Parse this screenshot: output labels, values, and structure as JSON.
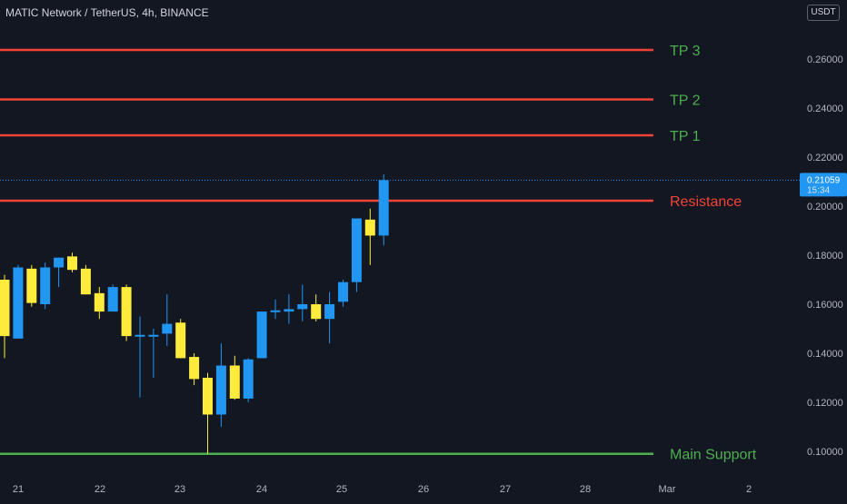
{
  "chart_title": "MATIC Network / TetherUS, 4h, BINANCE",
  "currency_label": "USDT",
  "last_price_label": {
    "price": "0.21059",
    "countdown": "15:34"
  },
  "colors": {
    "background": "#131722",
    "up": "#2196f3",
    "down": "#ffeb3b",
    "resistance": "#f44336",
    "support": "#4caf50",
    "target_text": "#4caf50",
    "resistance_text": "#f44336",
    "axis_text": "#b2b5be",
    "last_price": "#2196f3"
  },
  "chart_data": {
    "type": "candlestick",
    "y_axis": {
      "min": 0.093,
      "max": 0.281,
      "ticks": [
        "0.26000",
        "0.24000",
        "0.22000",
        "0.20000",
        "0.18000",
        "0.16000",
        "0.14000",
        "0.12000",
        "0.10000"
      ]
    },
    "x_axis": {
      "tick_labels": [
        "21",
        "22",
        "23",
        "24",
        "25",
        "26",
        "27",
        "28",
        "Mar",
        "2"
      ]
    },
    "levels": [
      {
        "label": "TP 3",
        "price": 0.2637,
        "kind": "target"
      },
      {
        "label": "TP 2",
        "price": 0.2435,
        "kind": "target"
      },
      {
        "label": "TP 1",
        "price": 0.2289,
        "kind": "target"
      },
      {
        "label": "Resistance",
        "price": 0.2022,
        "kind": "resistance"
      },
      {
        "label": "Main Support",
        "price": 0.099,
        "kind": "support"
      }
    ],
    "candles": [
      {
        "o": 0.17,
        "h": 0.172,
        "l": 0.138,
        "c": 0.147
      },
      {
        "o": 0.146,
        "h": 0.176,
        "l": 0.146,
        "c": 0.175
      },
      {
        "o": 0.1745,
        "h": 0.176,
        "l": 0.159,
        "c": 0.1605
      },
      {
        "o": 0.16,
        "h": 0.177,
        "l": 0.158,
        "c": 0.175
      },
      {
        "o": 0.175,
        "h": 0.179,
        "l": 0.167,
        "c": 0.179
      },
      {
        "o": 0.1795,
        "h": 0.181,
        "l": 0.173,
        "c": 0.174
      },
      {
        "o": 0.1745,
        "h": 0.176,
        "l": 0.164,
        "c": 0.164
      },
      {
        "o": 0.1645,
        "h": 0.167,
        "l": 0.154,
        "c": 0.157
      },
      {
        "o": 0.157,
        "h": 0.168,
        "l": 0.157,
        "c": 0.167
      },
      {
        "o": 0.167,
        "h": 0.168,
        "l": 0.145,
        "c": 0.147
      },
      {
        "o": 0.1475,
        "h": 0.155,
        "l": 0.122,
        "c": 0.1475
      },
      {
        "o": 0.147,
        "h": 0.15,
        "l": 0.13,
        "c": 0.1475
      },
      {
        "o": 0.148,
        "h": 0.164,
        "l": 0.143,
        "c": 0.152
      },
      {
        "o": 0.1525,
        "h": 0.154,
        "l": 0.138,
        "c": 0.138
      },
      {
        "o": 0.1385,
        "h": 0.14,
        "l": 0.127,
        "c": 0.1295
      },
      {
        "o": 0.13,
        "h": 0.132,
        "l": 0.099,
        "c": 0.115
      },
      {
        "o": 0.115,
        "h": 0.144,
        "l": 0.11,
        "c": 0.135
      },
      {
        "o": 0.135,
        "h": 0.139,
        "l": 0.121,
        "c": 0.1215
      },
      {
        "o": 0.1215,
        "h": 0.138,
        "l": 0.12,
        "c": 0.1375
      },
      {
        "o": 0.138,
        "h": 0.157,
        "l": 0.138,
        "c": 0.157
      },
      {
        "o": 0.157,
        "h": 0.162,
        "l": 0.154,
        "c": 0.1575
      },
      {
        "o": 0.157,
        "h": 0.164,
        "l": 0.152,
        "c": 0.158
      },
      {
        "o": 0.158,
        "h": 0.168,
        "l": 0.153,
        "c": 0.16
      },
      {
        "o": 0.16,
        "h": 0.164,
        "l": 0.153,
        "c": 0.154
      },
      {
        "o": 0.154,
        "h": 0.165,
        "l": 0.144,
        "c": 0.16
      },
      {
        "o": 0.161,
        "h": 0.17,
        "l": 0.159,
        "c": 0.169
      },
      {
        "o": 0.169,
        "h": 0.195,
        "l": 0.165,
        "c": 0.195
      },
      {
        "o": 0.1945,
        "h": 0.199,
        "l": 0.176,
        "c": 0.188
      },
      {
        "o": 0.188,
        "h": 0.213,
        "l": 0.184,
        "c": 0.2106
      }
    ]
  }
}
